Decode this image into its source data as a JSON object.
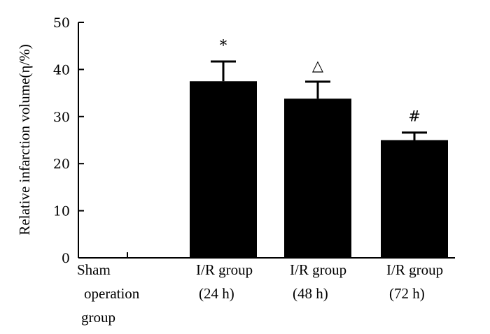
{
  "chart_data": {
    "type": "bar",
    "ylabel": "Relative infarction volume(η/%)",
    "ylim": [
      0,
      50
    ],
    "yticks": [
      0,
      10,
      20,
      30,
      40,
      50
    ],
    "grid": false,
    "categories": [
      [
        "Sham",
        "operation",
        "group"
      ],
      [
        "I/R group",
        "(24  h)"
      ],
      [
        "I/R group",
        "(48  h)"
      ],
      [
        "I/R group",
        "(72  h)"
      ]
    ],
    "values": [
      0,
      37.5,
      33.8,
      25.0
    ],
    "error": [
      0,
      4.2,
      3.6,
      1.6
    ],
    "annotations": [
      "",
      "*",
      "△",
      "#"
    ]
  }
}
